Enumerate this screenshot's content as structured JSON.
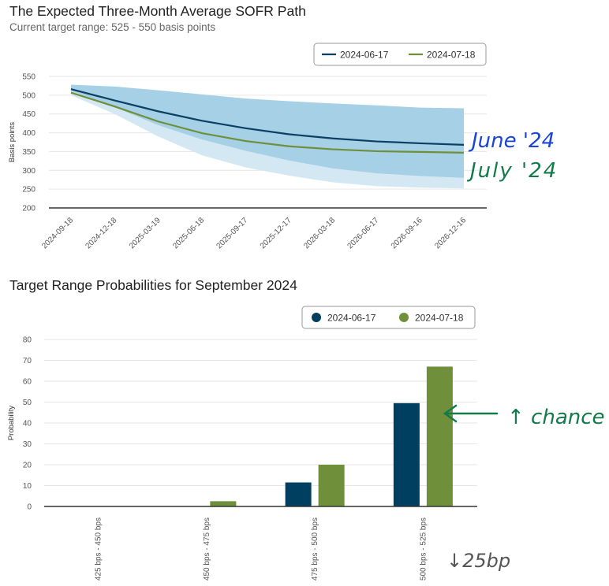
{
  "chart_data": [
    {
      "type": "area",
      "title": "The Expected Three-Month Average SOFR Path",
      "subtitle": "Current target range: 525 - 550 basis points",
      "xlabel": "",
      "ylabel": "Basis points",
      "ylim": [
        200,
        550
      ],
      "yticks": [
        550,
        500,
        450,
        400,
        350,
        300,
        250,
        200
      ],
      "categories": [
        "2024-09-18",
        "2024-12-18",
        "2025-03-19",
        "2025-06-18",
        "2025-09-17",
        "2025-12-17",
        "2026-03-18",
        "2026-06-17",
        "2026-09-16",
        "2026-12-16"
      ],
      "series": [
        {
          "name": "2024-06-17",
          "color": "#0b3f63",
          "values": [
            516,
            486,
            457,
            432,
            412,
            396,
            385,
            377,
            372,
            368
          ]
        },
        {
          "name": "2024-07-18",
          "color": "#6f8f3a",
          "values": [
            507,
            470,
            430,
            399,
            378,
            364,
            356,
            351,
            349,
            347
          ]
        }
      ],
      "bands": [
        {
          "color": "#a6d0e6",
          "upper": [
            528,
            523,
            513,
            502,
            491,
            484,
            478,
            473,
            467,
            465
          ],
          "lower": [
            512,
            468,
            420,
            382,
            352,
            326,
            305,
            292,
            285,
            280
          ]
        },
        {
          "color": "#d4e8f3",
          "upper": [
            512,
            468,
            420,
            382,
            352,
            326,
            305,
            292,
            285,
            280
          ],
          "lower": [
            500,
            450,
            390,
            340,
            308,
            286,
            268,
            258,
            254,
            252
          ]
        }
      ],
      "legend": "top-right",
      "grid": true,
      "annotations": [
        "June '24",
        "July '24"
      ]
    },
    {
      "type": "bar",
      "title": "Target Range Probabilities for September 2024",
      "xlabel": "",
      "ylabel": "Probability",
      "ylim": [
        0,
        80
      ],
      "yticks": [
        80,
        70,
        60,
        50,
        40,
        30,
        20,
        10,
        0
      ],
      "categories": [
        "425 bps - 450 bps",
        "450 bps - 475 bps",
        "475 bps - 500 bps",
        "500 bps - 525 bps"
      ],
      "series": [
        {
          "name": "2024-06-17",
          "color": "#003f5f",
          "values": [
            0,
            0,
            11.5,
            49.5
          ]
        },
        {
          "name": "2024-07-18",
          "color": "#6f8f3a",
          "values": [
            0,
            2.5,
            20,
            67
          ]
        }
      ],
      "legend": "top-right",
      "grid": true,
      "annotations": [
        "↑ chance",
        "↓25bp"
      ]
    }
  ]
}
